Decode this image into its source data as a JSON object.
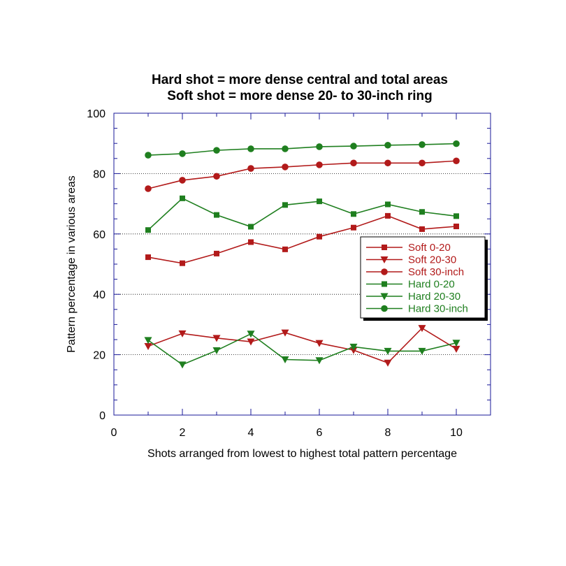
{
  "chart_data": {
    "type": "line",
    "title": [
      "Hard shot = more dense central and total areas",
      "Soft shot = more dense 20- to 30-inch ring"
    ],
    "xlabel": "Shots arranged from lowest to highest total pattern percentage",
    "ylabel": "Pattern percentage in various areas",
    "xlim": [
      0,
      11
    ],
    "ylim": [
      0,
      100
    ],
    "xticks": [
      0,
      2,
      4,
      6,
      8,
      10
    ],
    "yticks": [
      0,
      20,
      40,
      60,
      80,
      100
    ],
    "grid": "horizontal dotted at y ticks",
    "legend_position": "right, inside plot",
    "x": [
      1,
      2,
      3,
      4,
      5,
      6,
      7,
      8,
      9,
      10
    ],
    "series": [
      {
        "name": "Soft 0-20",
        "color": "#b21a1a",
        "marker": "square",
        "values": [
          52.3,
          50.3,
          53.5,
          57.3,
          54.9,
          59.1,
          62.1,
          66.0,
          61.6,
          62.5
        ]
      },
      {
        "name": "Soft 20-30",
        "color": "#b21a1a",
        "marker": "triangle-down",
        "values": [
          22.8,
          27.0,
          25.5,
          24.3,
          27.3,
          23.8,
          21.5,
          17.3,
          28.8,
          21.9
        ]
      },
      {
        "name": "Soft 30-inch",
        "color": "#b21a1a",
        "marker": "circle",
        "values": [
          75.0,
          77.8,
          79.1,
          81.7,
          82.2,
          82.9,
          83.5,
          83.5,
          83.5,
          84.2
        ]
      },
      {
        "name": "Hard 0-20",
        "color": "#1f7f1f",
        "marker": "square",
        "values": [
          61.3,
          71.8,
          66.3,
          62.4,
          69.6,
          70.8,
          66.6,
          69.8,
          67.3,
          65.9
        ]
      },
      {
        "name": "Hard 20-30",
        "color": "#1f7f1f",
        "marker": "triangle-down",
        "values": [
          24.8,
          16.7,
          21.4,
          26.9,
          18.4,
          18.1,
          22.6,
          21.2,
          21.2,
          23.9
        ]
      },
      {
        "name": "Hard 30-inch",
        "color": "#1f7f1f",
        "marker": "circle",
        "values": [
          86.1,
          86.6,
          87.7,
          88.2,
          88.2,
          88.9,
          89.1,
          89.4,
          89.6,
          89.9
        ]
      }
    ]
  }
}
